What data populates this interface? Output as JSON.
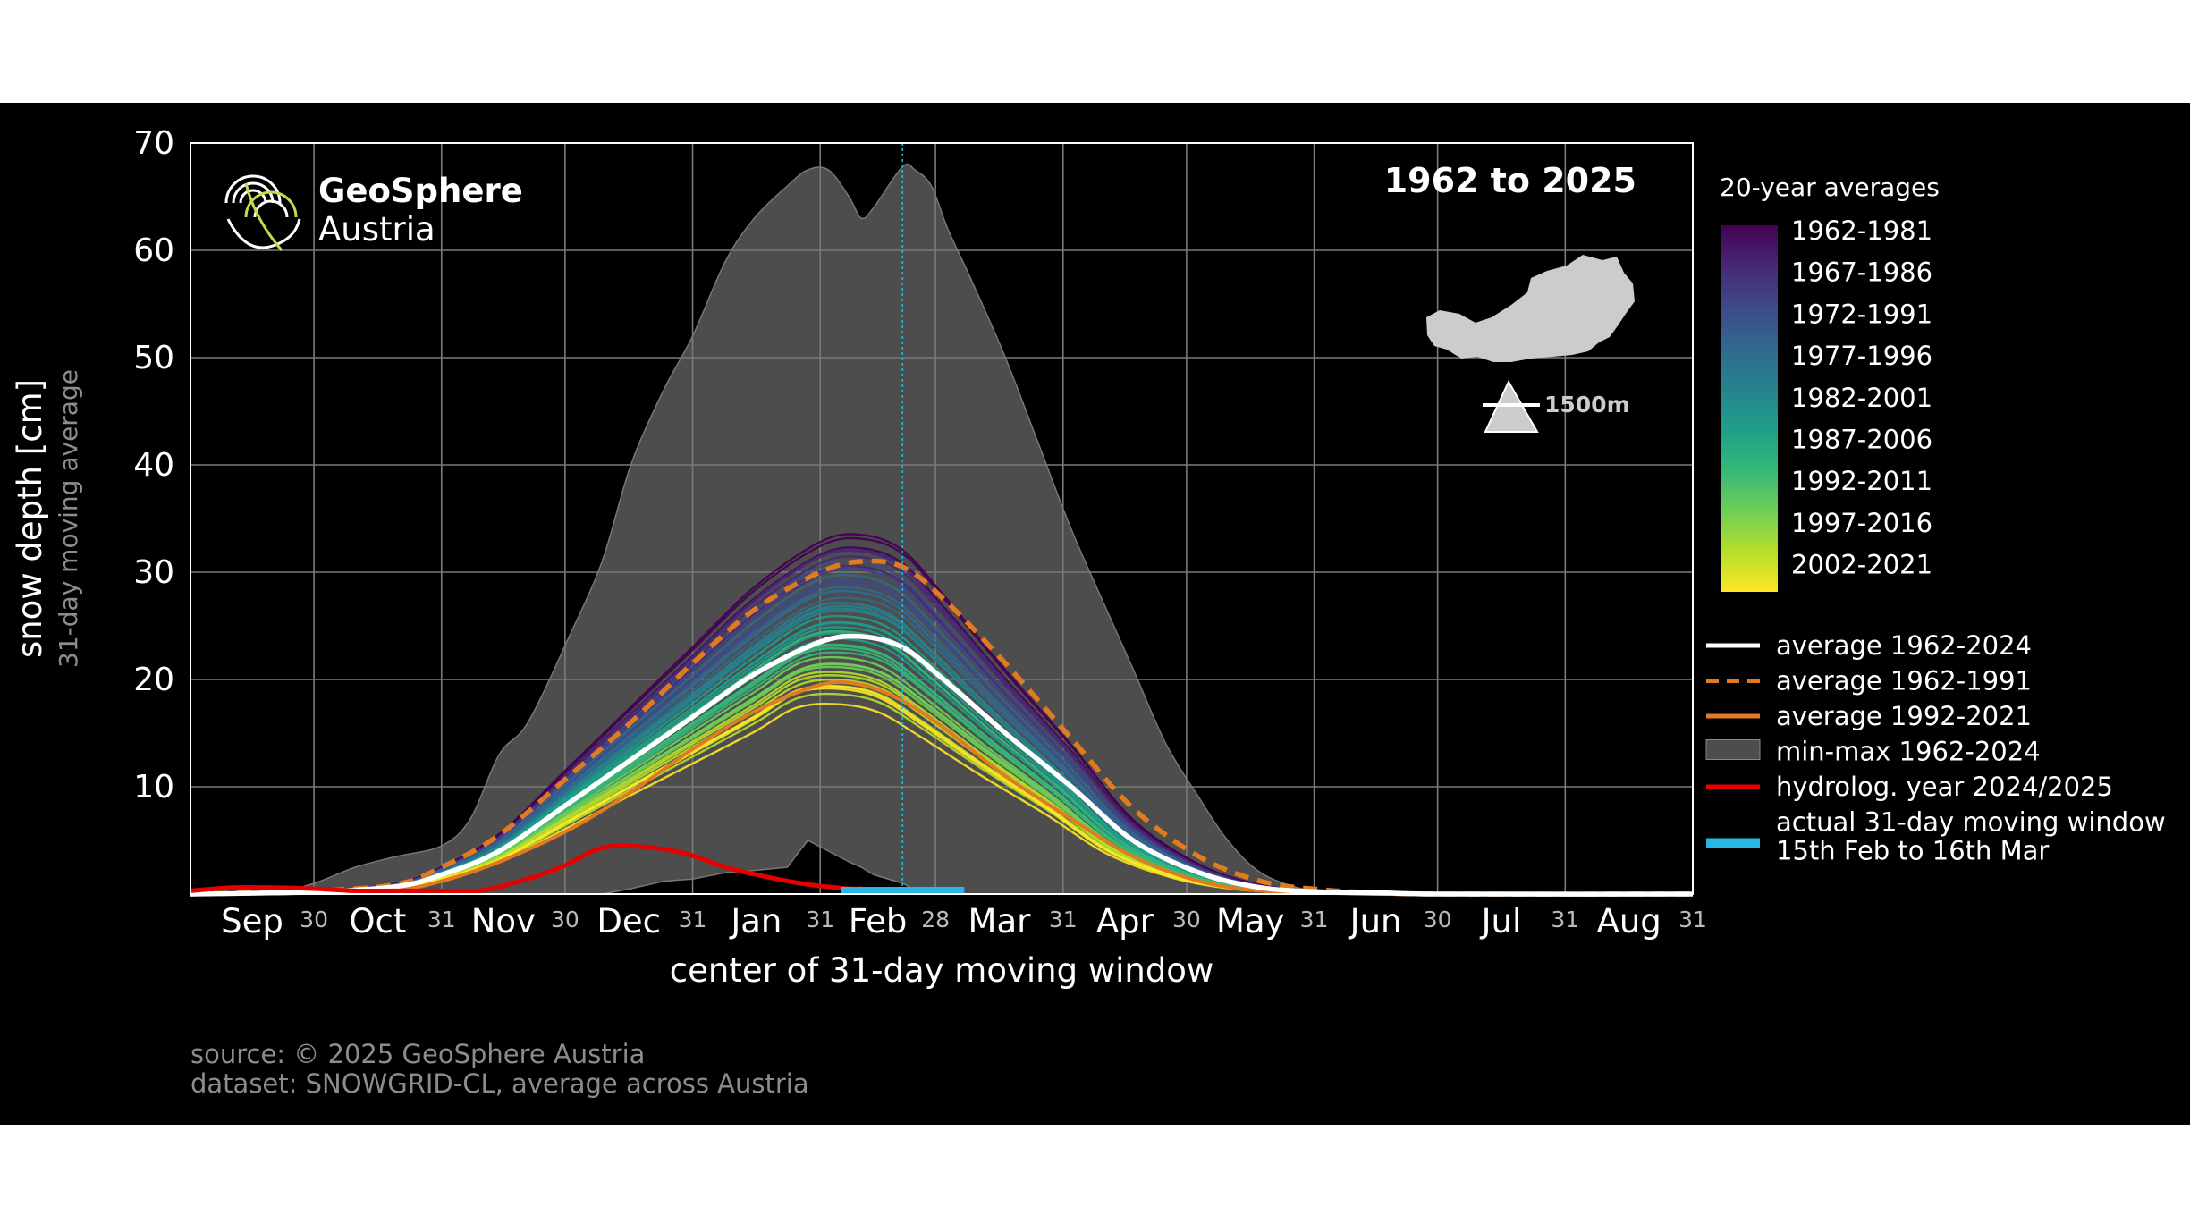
{
  "chart_data": {
    "type": "line",
    "title": "1962 to 2025",
    "logo": {
      "line1": "GeoSphere",
      "line2": "Austria"
    },
    "elevation_label": "1500m",
    "ylabel": "snow depth [cm]",
    "ylabel_sub": "31-day moving average",
    "xlabel": "center of 31-day moving window",
    "ylim": [
      0,
      70
    ],
    "yticks": [
      10,
      20,
      30,
      40,
      50,
      60,
      70
    ],
    "months": [
      "Sep",
      "Oct",
      "Nov",
      "Dec",
      "Jan",
      "Feb",
      "Mar",
      "Apr",
      "May",
      "Jun",
      "Jul",
      "Aug"
    ],
    "month_end_labels": [
      "30",
      "31",
      "30",
      "31",
      "31",
      "28",
      "31",
      "30",
      "31",
      "30",
      "31",
      "31"
    ],
    "grid": true,
    "current_window_day": 173,
    "legend_colorbar": {
      "title": "20-year averages",
      "entries": [
        "1962-1981",
        "1967-1986",
        "1972-1991",
        "1977-1996",
        "1982-2001",
        "1987-2006",
        "1992-2011",
        "1997-2016",
        "2002-2021"
      ],
      "colors": [
        "#440154",
        "#482878",
        "#3e4989",
        "#31688e",
        "#26828e",
        "#1f9e89",
        "#35b779",
        "#6ece58",
        "#b5de2b",
        "#fde725"
      ]
    },
    "legend": [
      {
        "label": "average 1962-2024",
        "color": "#ffffff",
        "style": "solid"
      },
      {
        "label": "average 1962-1991",
        "color": "#e07b20",
        "style": "dashed"
      },
      {
        "label": "average 1992-2021",
        "color": "#e07b20",
        "style": "solid"
      },
      {
        "label": "min-max 1962-2024",
        "color": "#4d4d4d",
        "style": "area"
      },
      {
        "label": "hydrolog. year 2024/2025",
        "color": "#e60000",
        "style": "solid"
      },
      {
        "label": "actual 31-day moving window",
        "label2": "15th Feb to 16th Mar",
        "color": "#29b6e6",
        "style": "bar"
      }
    ],
    "series": [
      {
        "name": "average 1962-2024",
        "x": [
          0,
          30,
          50,
          61,
          75,
          92,
          107,
          122,
          137,
          153,
          163,
          173,
          183,
          198,
          214,
          229,
          245,
          260,
          275,
          290,
          305,
          365
        ],
        "values": [
          0,
          0.2,
          0.7,
          1.8,
          4,
          8.5,
          12.5,
          16.5,
          20.5,
          23.5,
          24,
          23,
          20,
          15,
          10,
          5,
          2,
          0.6,
          0.2,
          0.1,
          0,
          0
        ]
      },
      {
        "name": "average 1962-1991",
        "x": [
          0,
          30,
          50,
          61,
          75,
          92,
          107,
          122,
          137,
          153,
          163,
          173,
          183,
          198,
          214,
          229,
          245,
          260,
          275,
          290,
          305,
          365
        ],
        "values": [
          0,
          0.3,
          0.9,
          2.5,
          5.5,
          11,
          16,
          21.5,
          26.5,
          30,
          31,
          30.5,
          27.5,
          21.5,
          14.5,
          8,
          3.5,
          1.2,
          0.4,
          0.1,
          0,
          0
        ]
      },
      {
        "name": "average 1992-2021",
        "x": [
          0,
          30,
          50,
          61,
          75,
          92,
          107,
          122,
          137,
          153,
          163,
          173,
          183,
          198,
          214,
          229,
          245,
          260,
          275,
          290,
          305,
          365
        ],
        "values": [
          0,
          0.1,
          0.4,
          1.2,
          3,
          6,
          9.5,
          13.5,
          17,
          19.5,
          19.5,
          18,
          15.5,
          11,
          7,
          3.5,
          1.2,
          0.3,
          0.1,
          0,
          0,
          0
        ]
      },
      {
        "name": "hydrolog. year 2024/2025",
        "x": [
          0,
          10,
          20,
          30,
          40,
          50,
          60,
          70,
          80,
          90,
          100,
          110,
          120,
          130,
          140,
          150,
          160,
          163
        ],
        "values": [
          0.3,
          0.6,
          0.6,
          0.5,
          0.3,
          0.3,
          0.3,
          0.3,
          1.2,
          2.5,
          4.3,
          4.4,
          3.8,
          2.5,
          1.6,
          0.9,
          0.5,
          0.5
        ]
      }
    ],
    "minmax": {
      "x": [
        0,
        20,
        30,
        40,
        50,
        61,
        68,
        75,
        82,
        92,
        100,
        107,
        115,
        122,
        130,
        137,
        145,
        150,
        155,
        160,
        163,
        166,
        173,
        176,
        180,
        184,
        190,
        198,
        206,
        214,
        222,
        229,
        237,
        245,
        252,
        260,
        270,
        280,
        290,
        300,
        365
      ],
      "max": [
        0,
        0.2,
        1,
        2.5,
        3.5,
        4.5,
        7,
        13,
        16,
        24,
        31,
        40,
        47,
        52,
        59,
        63,
        66,
        67.5,
        67.5,
        65,
        63,
        64,
        67.8,
        67.5,
        66,
        62,
        57,
        50,
        42,
        34,
        27,
        21,
        14,
        9,
        5,
        2,
        0.5,
        0.1,
        0,
        0,
        0
      ],
      "min": [
        0,
        0,
        0,
        0,
        0,
        0,
        0,
        0,
        0,
        0,
        0,
        0.5,
        1.2,
        1.4,
        2,
        2.2,
        2.5,
        5,
        4,
        3,
        2.5,
        1.8,
        1,
        0.4,
        0,
        0,
        0,
        0,
        0,
        0,
        0,
        0,
        0,
        0,
        0,
        0,
        0,
        0,
        0,
        0,
        0
      ]
    }
  },
  "footer": {
    "source": "source: © 2025 GeoSphere Austria",
    "dataset": "dataset: SNOWGRID-CL, average across Austria"
  }
}
